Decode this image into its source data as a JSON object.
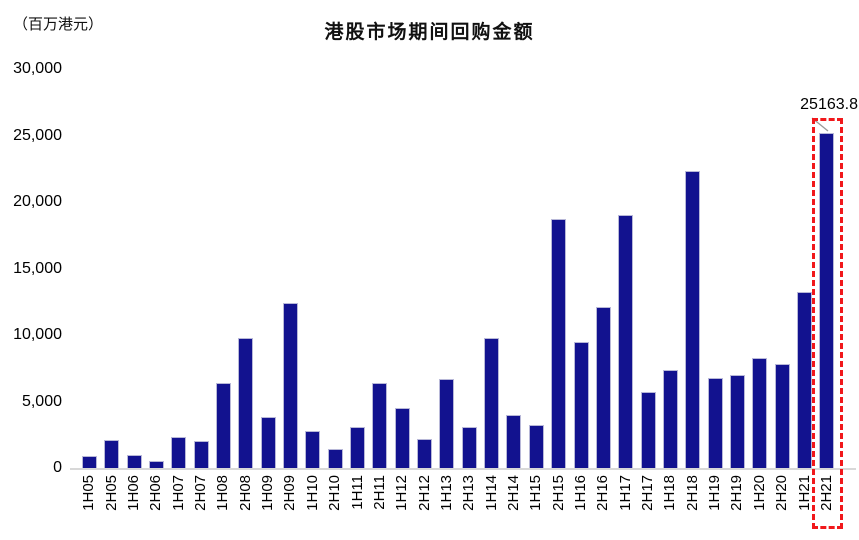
{
  "chart_data": {
    "type": "bar",
    "title": "港股市场期间回购金额",
    "unit_label": "（百万港元）",
    "xlabel": "",
    "ylabel": "百万港元",
    "categories": [
      "1H05",
      "2H05",
      "1H06",
      "2H06",
      "1H07",
      "2H07",
      "1H08",
      "2H08",
      "1H09",
      "2H09",
      "1H10",
      "2H10",
      "1H11",
      "2H11",
      "1H12",
      "2H12",
      "1H13",
      "2H13",
      "1H14",
      "2H14",
      "1H15",
      "2H15",
      "1H16",
      "2H16",
      "1H17",
      "2H17",
      "1H18",
      "2H18",
      "1H19",
      "2H19",
      "1H20",
      "2H20",
      "1H21",
      "2H21"
    ],
    "values": [
      900,
      2100,
      1000,
      500,
      2300,
      2000,
      6400,
      9800,
      3800,
      12400,
      2800,
      1400,
      3100,
      6400,
      4500,
      2200,
      6700,
      3100,
      9800,
      4000,
      3200,
      18700,
      9500,
      12100,
      19000,
      5700,
      7400,
      22300,
      6800,
      7000,
      8300,
      7800,
      13200,
      25163.8
    ],
    "ylim": [
      0,
      30000
    ],
    "y_tick_values": [
      0,
      5000,
      10000,
      15000,
      20000,
      25000,
      30000
    ],
    "y_tick_labels": [
      "0",
      "5,000",
      "10,000",
      "15,000",
      "20,000",
      "25,000",
      "30,000"
    ],
    "grid": false,
    "legend": "none",
    "bar_color": "#12128f",
    "bar_edge_color": "#b8b8d8",
    "highlight": {
      "category": "2H21",
      "value_label": "25163.8",
      "style": "red-dashed-outline",
      "color": "#f1181b"
    }
  }
}
